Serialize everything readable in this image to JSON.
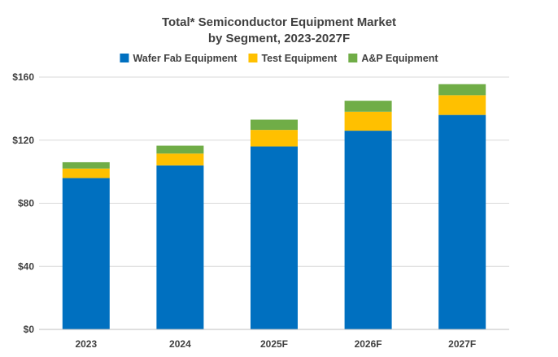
{
  "chart_data": {
    "type": "bar",
    "stacked": true,
    "title": [
      "Total* Semiconductor Equipment Market",
      "by Segment, 2023-2027F"
    ],
    "categories": [
      "2023",
      "2024",
      "2025F",
      "2026F",
      "2027F"
    ],
    "series": [
      {
        "name": "Wafer Fab Equipment",
        "color": "#0070C0",
        "values": [
          96,
          104,
          116,
          126,
          136
        ]
      },
      {
        "name": "Test Equipment",
        "color": "#FFC000",
        "values": [
          6,
          7.5,
          10.5,
          12,
          12.5
        ]
      },
      {
        "name": "A&P Equipment",
        "color": "#70AD47",
        "values": [
          4,
          5,
          6.5,
          7,
          7
        ]
      }
    ],
    "ylim": [
      0,
      160
    ],
    "yticks": [
      0,
      40,
      80,
      120,
      160
    ],
    "ytick_labels": [
      "$0",
      "$40",
      "$80",
      "$120",
      "$160"
    ],
    "grid": true,
    "legend_position": "top"
  }
}
